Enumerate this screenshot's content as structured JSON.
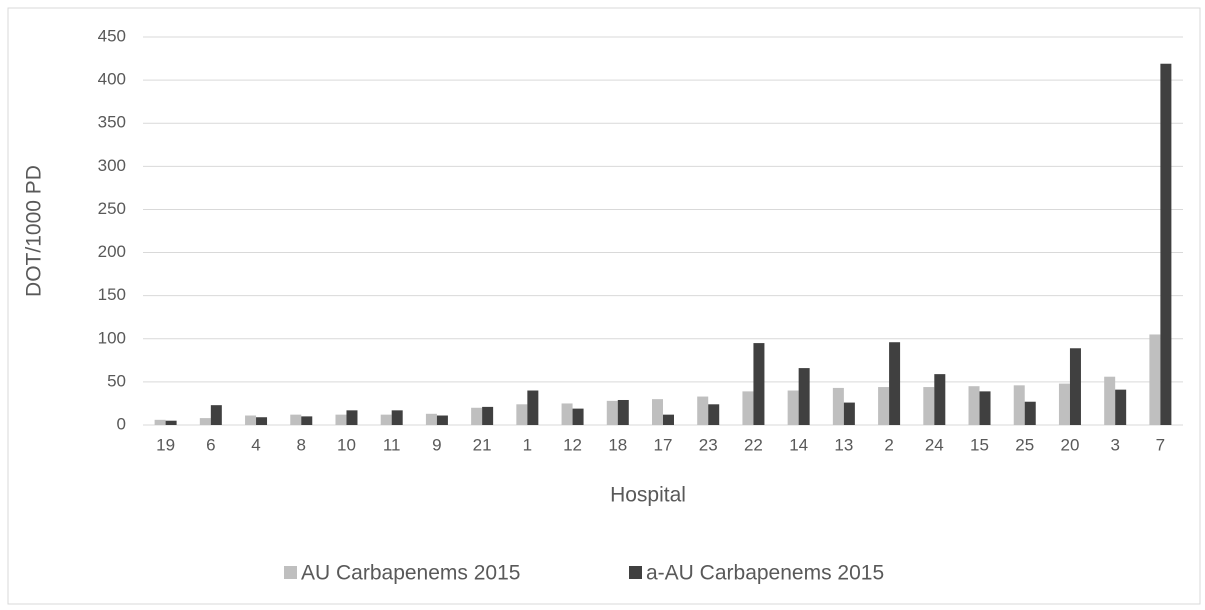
{
  "chart_data": {
    "type": "bar",
    "y_label": "DOT/1000 PD",
    "x_label": "Hospital",
    "categories": [
      "19",
      "6",
      "4",
      "8",
      "10",
      "11",
      "9",
      "21",
      "1",
      "12",
      "18",
      "17",
      "23",
      "22",
      "14",
      "13",
      "2",
      "24",
      "15",
      "25",
      "20",
      "3",
      "7"
    ],
    "series": [
      {
        "name": "AU Carbapenems 2015",
        "color": "#bfbfbf",
        "values": [
          6,
          8,
          11,
          12,
          12,
          12,
          13,
          20,
          24,
          25,
          28,
          30,
          33,
          39,
          40,
          43,
          44,
          44,
          45,
          46,
          48,
          56,
          105
        ]
      },
      {
        "name": "a-AU Carbapenems 2015",
        "color": "#404040",
        "values": [
          5,
          23,
          9,
          10,
          17,
          17,
          11,
          21,
          40,
          19,
          29,
          12,
          24,
          95,
          66,
          26,
          96,
          59,
          39,
          27,
          89,
          41,
          419
        ]
      }
    ],
    "ylim": [
      0,
      450
    ],
    "yticks": [
      0,
      50,
      100,
      150,
      200,
      250,
      300,
      350,
      400,
      450
    ],
    "grid": true
  }
}
